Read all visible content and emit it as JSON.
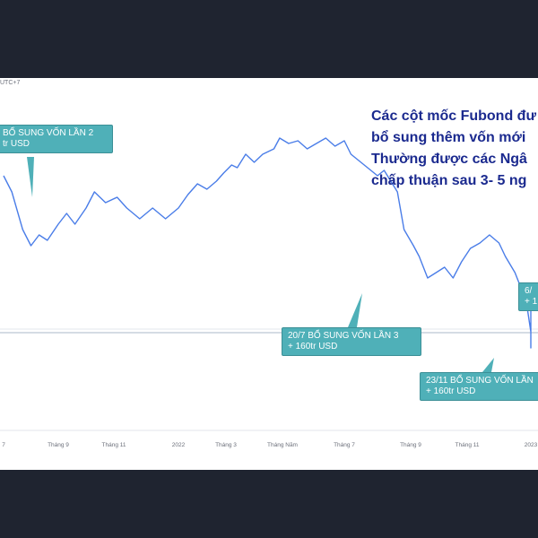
{
  "header": {
    "timezone": "UTC+7"
  },
  "note": {
    "lines": [
      "Các cột mốc Fubond đư",
      "bổ sung thêm vốn mới",
      "Thường được các Ngâ",
      "chấp thuận sau 3- 5 ng"
    ]
  },
  "callouts": [
    {
      "line1": "BỔ SUNG VỐN LẦN 2",
      "line2": "tr USD"
    },
    {
      "line1": "20/7 BỔ SUNG VỐN LẦN 3",
      "line2": "+ 160tr USD"
    },
    {
      "line1": "23/11 BỔ SUNG VỐN LẦN",
      "line2": "+ 160tr USD"
    },
    {
      "line1": "6/",
      "line2": "+ 1"
    }
  ],
  "colors": {
    "line": "#4a7de8",
    "callout": "#4fb0b8",
    "note": "#1b2a8f",
    "frame": "#1f2430"
  },
  "chart_data": {
    "type": "line",
    "x_ticks": [
      "7",
      "Tháng 9",
      "Tháng 11",
      "2022",
      "Tháng 3",
      "Tháng Năm",
      "Tháng 7",
      "Tháng 9",
      "Tháng 11",
      "2023"
    ],
    "grid": false,
    "series": [
      {
        "values": [
          [
            0.0,
            82
          ],
          [
            0.15,
            76
          ],
          [
            0.35,
            62
          ],
          [
            0.5,
            56
          ],
          [
            0.65,
            60
          ],
          [
            0.8,
            58
          ],
          [
            1.0,
            64
          ],
          [
            1.15,
            68
          ],
          [
            1.3,
            64
          ],
          [
            1.5,
            70
          ],
          [
            1.65,
            76
          ],
          [
            1.85,
            72
          ],
          [
            2.05,
            74
          ],
          [
            2.2,
            70
          ],
          [
            2.4,
            66
          ],
          [
            2.6,
            70
          ],
          [
            2.8,
            66
          ],
          [
            3.0,
            70
          ],
          [
            3.2,
            75
          ],
          [
            3.4,
            79
          ],
          [
            3.6,
            77
          ],
          [
            3.8,
            80
          ],
          [
            3.95,
            83
          ],
          [
            4.1,
            86
          ],
          [
            4.2,
            85
          ],
          [
            4.35,
            90
          ],
          [
            4.5,
            87
          ],
          [
            4.65,
            90
          ],
          [
            4.85,
            92
          ],
          [
            4.95,
            96
          ],
          [
            5.1,
            94
          ],
          [
            5.25,
            95
          ],
          [
            5.4,
            92
          ],
          [
            5.55,
            94
          ],
          [
            5.7,
            96
          ],
          [
            5.85,
            93
          ],
          [
            6.0,
            95
          ],
          [
            6.1,
            90
          ],
          [
            6.3,
            86
          ],
          [
            6.5,
            82
          ],
          [
            6.6,
            84
          ],
          [
            6.8,
            76
          ],
          [
            6.9,
            62
          ],
          [
            7.05,
            56
          ],
          [
            7.15,
            52
          ],
          [
            7.3,
            44
          ],
          [
            7.45,
            46
          ],
          [
            7.6,
            48
          ],
          [
            7.75,
            44
          ],
          [
            7.9,
            50
          ],
          [
            8.05,
            55
          ],
          [
            8.2,
            57
          ],
          [
            8.35,
            60
          ],
          [
            8.5,
            57
          ],
          [
            8.6,
            52
          ],
          [
            8.75,
            46
          ],
          [
            8.85,
            40
          ],
          [
            8.95,
            32
          ],
          [
            9.1,
            24
          ],
          [
            9.25,
            22
          ],
          [
            9.4,
            18
          ],
          [
            9.5,
            24
          ],
          [
            9.65,
            30
          ],
          [
            9.8,
            33
          ],
          [
            9.9,
            38
          ],
          [
            10.0,
            40
          ]
        ]
      }
    ]
  }
}
